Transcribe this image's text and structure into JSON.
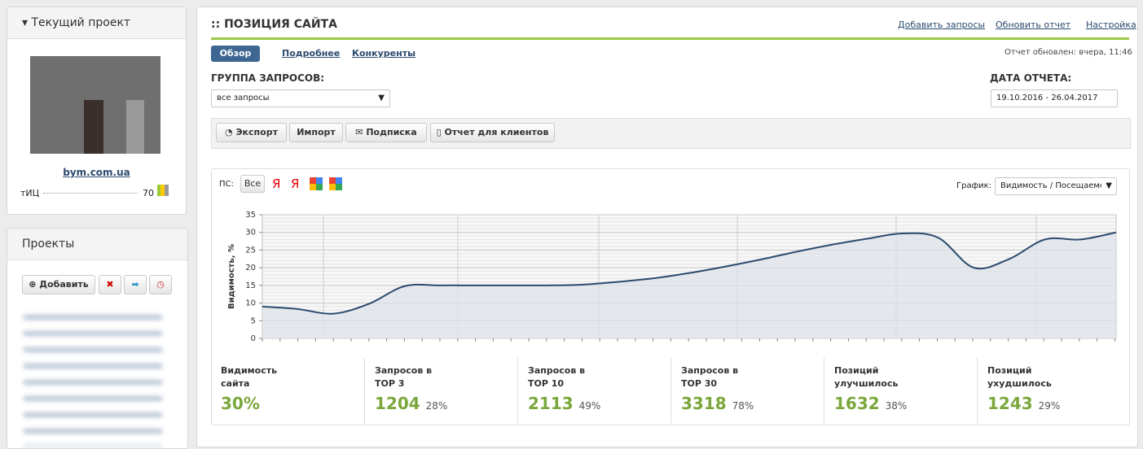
{
  "sidebar": {
    "current_project": {
      "title": "Текущий проект",
      "site": "bym.com.ua",
      "tic_label": "тИЦ",
      "tic_value": "70"
    },
    "projects": {
      "title": "Проекты",
      "add_button": "Добавить"
    }
  },
  "header": {
    "title": ":: ПОЗИЦИЯ САЙТА",
    "links": [
      "Добавить запросы",
      "Обновить отчет",
      "Настройка"
    ],
    "tabs": [
      "Обзор",
      "Подробнее",
      "Конкуренты"
    ],
    "updated": "Отчет обновлен: вчера, 11:46"
  },
  "filters": {
    "group_label": "ГРУППА ЗАПРОСОВ:",
    "group_value": "все запросы",
    "date_label": "ДАТА ОТЧЕТА:",
    "date_value": "19.10.2016 - 26.04.2017"
  },
  "toolbar": [
    "Экспорт",
    "Импорт",
    "Подписка",
    "Отчет для клиентов"
  ],
  "chart_data": {
    "type": "line",
    "ps_label": "ПС:",
    "ps_all": "Все",
    "engines": [
      "Я",
      "Я"
    ],
    "graph_label": "График:",
    "graph_select": "Видимость / Посещаемс",
    "y_label": "Видимость, %",
    "color": "#2c4a6e",
    "grid": true,
    "ylim": [
      0,
      35
    ],
    "yticks": [
      0,
      5,
      10,
      15,
      20,
      25,
      30,
      35
    ],
    "categories": [
      null,
      null,
      null,
      null,
      null,
      null,
      null,
      null,
      null,
      null,
      null,
      null,
      null,
      null,
      null,
      null,
      null,
      null,
      null,
      null,
      null,
      null,
      null,
      null,
      null
    ],
    "values": [
      9,
      8.3,
      7,
      9.8,
      14.8,
      15,
      15,
      15,
      15,
      15.2,
      16,
      17,
      18.5,
      20.3,
      22.3,
      24.5,
      26.5,
      28.2,
      29.7,
      28.5,
      20,
      22.5,
      28,
      28,
      30
    ]
  },
  "stats": [
    {
      "label": [
        "Видимость",
        "сайта"
      ],
      "value": "30%"
    },
    {
      "label": [
        "Запросов в",
        "TOP 3"
      ],
      "value": "1204",
      "share": "28%"
    },
    {
      "label": [
        "Запросов в",
        "TOP 10"
      ],
      "value": "2113",
      "share": "49%"
    },
    {
      "label": [
        "Запросов в",
        "TOP 30"
      ],
      "value": "3318",
      "share": "78%"
    },
    {
      "label": [
        "Позиций",
        "улучшилось"
      ],
      "value": "1632",
      "share": "38%"
    },
    {
      "label": [
        "Позиций",
        "ухудшилось"
      ],
      "value": "1243",
      "share": "29%"
    }
  ]
}
